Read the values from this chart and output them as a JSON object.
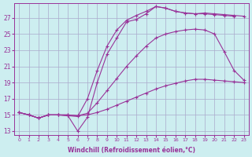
{
  "background_color": "#cdeef0",
  "grid_color": "#aaaacc",
  "line_color": "#993399",
  "xlabel": "Windchill (Refroidissement éolien,°C)",
  "yticks": [
    13,
    15,
    17,
    19,
    21,
    23,
    25,
    27
  ],
  "xticks": [
    0,
    1,
    2,
    3,
    4,
    5,
    6,
    7,
    8,
    9,
    10,
    11,
    12,
    13,
    14,
    15,
    16,
    17,
    18,
    19,
    20,
    21,
    22,
    23
  ],
  "xlim": [
    -0.5,
    23.5
  ],
  "ylim": [
    12.5,
    28.8
  ],
  "lines": [
    {
      "x": [
        0,
        1,
        2,
        3,
        4,
        5,
        6,
        7,
        8,
        9,
        10,
        11,
        12,
        13,
        14,
        15,
        16,
        17,
        18,
        19,
        20,
        21,
        22,
        23
      ],
      "y": [
        15.3,
        15.0,
        14.6,
        15.0,
        15.0,
        15.0,
        14.9,
        15.0,
        15.3,
        15.7,
        16.2,
        16.7,
        17.2,
        17.7,
        18.2,
        18.6,
        18.9,
        19.2,
        19.4,
        19.4,
        19.3,
        19.2,
        19.1,
        19.0
      ]
    },
    {
      "x": [
        0,
        1,
        2,
        3,
        4,
        5,
        6,
        7,
        8,
        9,
        10,
        11,
        12,
        13,
        14,
        15,
        16,
        17,
        18,
        19,
        20,
        21,
        22,
        23
      ],
      "y": [
        15.3,
        15.0,
        14.6,
        15.0,
        15.0,
        15.0,
        14.9,
        15.2,
        16.5,
        18.0,
        19.5,
        21.0,
        22.3,
        23.5,
        24.5,
        25.0,
        25.3,
        25.5,
        25.6,
        25.5,
        25.0,
        22.8,
        20.5,
        19.3
      ]
    },
    {
      "x": [
        0,
        1,
        2,
        3,
        4,
        5,
        6,
        7,
        8,
        9,
        10,
        11,
        12,
        13,
        14,
        15,
        16,
        17,
        18,
        19,
        20,
        21,
        22
      ],
      "y": [
        15.3,
        15.0,
        14.6,
        15.0,
        15.0,
        14.9,
        13.0,
        14.7,
        19.0,
        22.5,
        24.5,
        26.5,
        26.8,
        27.5,
        28.4,
        28.2,
        27.8,
        27.6,
        27.5,
        27.5,
        27.4,
        27.3,
        27.2
      ]
    },
    {
      "x": [
        0,
        1,
        2,
        3,
        4,
        5,
        6,
        7,
        8,
        9,
        10,
        11,
        12,
        13,
        14,
        15,
        16,
        17,
        18,
        19,
        20,
        21,
        22,
        23
      ],
      "y": [
        15.3,
        15.0,
        14.6,
        15.0,
        15.0,
        14.9,
        14.8,
        17.0,
        20.5,
        23.5,
        25.5,
        26.7,
        27.3,
        27.8,
        28.4,
        28.2,
        27.8,
        27.6,
        27.5,
        27.6,
        27.5,
        27.4,
        27.3,
        27.2
      ]
    }
  ]
}
